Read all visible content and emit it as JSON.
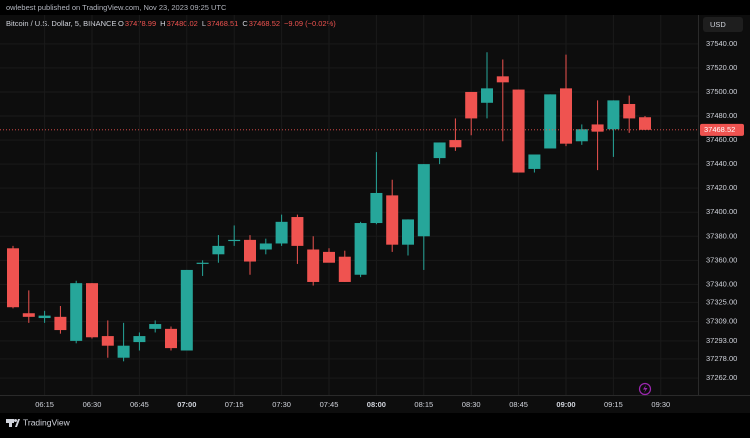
{
  "header": {
    "publisher": "owlebest published on TradingView.com, Nov 23, 2023 09:25 UTC"
  },
  "chart_data": {
    "type": "candlestick",
    "title": "Bitcoin / U.S. Dollar, 5, BINANCE",
    "legend_values": [
      {
        "key": "O",
        "text": "37478.99"
      },
      {
        "key": "H",
        "text": "37480.02"
      },
      {
        "key": "L",
        "text": "37468.51"
      },
      {
        "key": "C",
        "text": "37468.52"
      },
      {
        "key": "",
        "text": "−9.09 (−0.02%)"
      }
    ],
    "currency": "USD",
    "x": [
      "06:05",
      "06:10",
      "06:15",
      "06:20",
      "06:25",
      "06:30",
      "06:35",
      "06:40",
      "06:45",
      "06:50",
      "06:55",
      "07:00",
      "07:05",
      "07:10",
      "07:15",
      "07:20",
      "07:25",
      "07:30",
      "07:35",
      "07:40",
      "07:45",
      "07:50",
      "07:55",
      "08:00",
      "08:05",
      "08:10",
      "08:15",
      "08:20",
      "08:25",
      "08:30",
      "08:35",
      "08:40",
      "08:45",
      "08:50",
      "08:55",
      "09:00",
      "09:05",
      "09:10",
      "09:15",
      "09:20",
      "09:25"
    ],
    "open": [
      37370,
      37316,
      37312,
      37313,
      37293,
      37341,
      37297,
      37279,
      37292,
      37303,
      37303,
      37285,
      37357,
      37365,
      37376,
      37377,
      37369,
      37374,
      37396,
      37369,
      37367,
      37363,
      37348,
      37391,
      37414,
      37373,
      37380,
      37445,
      37460,
      37500,
      37491,
      37513,
      37502,
      37436,
      37453,
      37503,
      37459,
      37473,
      37469,
      37490,
      37478.99
    ],
    "high": [
      37372,
      37335,
      37318,
      37322,
      37343,
      37341,
      37310,
      37308,
      37300,
      37310,
      37305,
      37352,
      37360,
      37381,
      37389,
      37381,
      37378,
      37398,
      37398,
      37380,
      37370,
      37368,
      37392,
      37450,
      37427,
      37394,
      37440,
      37458,
      37478,
      37500,
      37533,
      37527,
      37502,
      37448,
      37498,
      37531,
      37473,
      37493,
      37493,
      37497,
      37480.02
    ],
    "low": [
      37320,
      37308,
      37308,
      37299,
      37291,
      37295,
      37279,
      37276,
      37285,
      37300,
      37285,
      37285,
      37347,
      37358,
      37372,
      37348,
      37365,
      37372,
      37357,
      37339,
      37360,
      37342,
      37346,
      37390,
      37367,
      37364,
      37352,
      37440,
      37451,
      37464,
      37478,
      37459,
      37433,
      37433,
      37453,
      37455,
      37456,
      37435,
      37446,
      37466,
      37468.51
    ],
    "close": [
      37321,
      37313,
      37314,
      37302,
      37341,
      37296,
      37289,
      37289,
      37297,
      37307,
      37287,
      37352,
      37358,
      37372,
      37377,
      37359,
      37374,
      37392,
      37372,
      37342,
      37358,
      37342,
      37391,
      37416,
      37373,
      37394,
      37440,
      37458,
      37454,
      37478,
      37503,
      37508,
      37433,
      37448,
      37498,
      37457,
      37469,
      37467,
      37493,
      37478,
      37468.52
    ],
    "up_color": "#26a69a",
    "down_color": "#ef5350",
    "ylim": [
      37248,
      37564
    ],
    "yticks": [
      {
        "value": 37540,
        "label": "37540.00"
      },
      {
        "value": 37520,
        "label": "37520.00"
      },
      {
        "value": 37500,
        "label": "37500.00"
      },
      {
        "value": 37480,
        "label": "37480.00"
      },
      {
        "value": 37460,
        "label": "37460.00"
      },
      {
        "value": 37440,
        "label": "37440.00"
      },
      {
        "value": 37420,
        "label": "37420.00"
      },
      {
        "value": 37400,
        "label": "37400.00"
      },
      {
        "value": 37380,
        "label": "37380.00"
      },
      {
        "value": 37360,
        "label": "37360.00"
      },
      {
        "value": 37340,
        "label": "37340.00"
      },
      {
        "value": 37325,
        "label": "37325.00"
      },
      {
        "value": 37309,
        "label": "37309.00"
      },
      {
        "value": 37293,
        "label": "37293.00"
      },
      {
        "value": 37278,
        "label": "37278.00"
      },
      {
        "value": 37262,
        "label": "37262.00"
      }
    ],
    "xticks": [
      "06:15",
      "06:30",
      "06:45",
      "07:00",
      "07:15",
      "07:30",
      "07:45",
      "08:00",
      "08:15",
      "08:30",
      "08:45",
      "09:00",
      "09:15",
      "09:30"
    ],
    "grid": true
  },
  "footer": {
    "brand": "TradingView"
  }
}
